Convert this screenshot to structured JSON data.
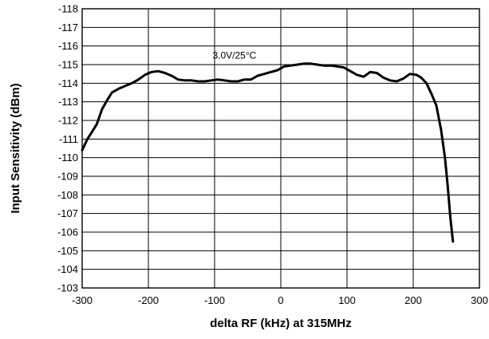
{
  "chart_data": {
    "type": "line",
    "title": "",
    "xlabel": "delta RF (kHz) at 315MHz",
    "ylabel": "Input Sensitivity (dBm)",
    "xlim": [
      -300,
      300
    ],
    "ylim": [
      -103,
      -118
    ],
    "y_axis_inverted": true,
    "xticks": [
      "-300",
      "-200",
      "-100",
      "0",
      "100",
      "200",
      "300"
    ],
    "yticks": [
      "-118",
      "-117",
      "-116",
      "-115",
      "-114",
      "-113",
      "-112",
      "-111",
      "-110",
      "-109",
      "-108",
      "-107",
      "-106",
      "-105",
      "-104",
      "-103"
    ],
    "grid": true,
    "annotations": [
      {
        "text": "3.0V/25°C",
        "x": -70,
        "y": -115.5
      }
    ],
    "series": [
      {
        "x": [
          -300,
          -292,
          -285,
          -278,
          -270,
          -262,
          -255,
          -245,
          -235,
          -225,
          -215,
          -205,
          -195,
          -185,
          -175,
          -165,
          -155,
          -145,
          -135,
          -125,
          -115,
          -105,
          -95,
          -85,
          -75,
          -65,
          -55,
          -45,
          -35,
          -25,
          -15,
          -5,
          5,
          15,
          25,
          35,
          45,
          55,
          65,
          75,
          85,
          95,
          105,
          115,
          125,
          135,
          145,
          155,
          165,
          175,
          185,
          195,
          205,
          212,
          220,
          228,
          235,
          242,
          248,
          252,
          256,
          260
        ],
        "values": [
          -110.4,
          -111.0,
          -111.4,
          -111.8,
          -112.6,
          -113.1,
          -113.5,
          -113.7,
          -113.85,
          -114.0,
          -114.2,
          -114.45,
          -114.6,
          -114.65,
          -114.55,
          -114.4,
          -114.2,
          -114.15,
          -114.15,
          -114.1,
          -114.1,
          -114.15,
          -114.2,
          -114.15,
          -114.1,
          -114.1,
          -114.2,
          -114.2,
          -114.4,
          -114.5,
          -114.6,
          -114.7,
          -114.9,
          -114.95,
          -115.0,
          -115.05,
          -115.05,
          -115.0,
          -114.95,
          -114.95,
          -114.9,
          -114.85,
          -114.65,
          -114.45,
          -114.35,
          -114.6,
          -114.55,
          -114.3,
          -114.15,
          -114.1,
          -114.25,
          -114.5,
          -114.45,
          -114.3,
          -114.0,
          -113.4,
          -112.8,
          -111.5,
          -110.0,
          -108.5,
          -106.8,
          -105.5
        ]
      }
    ]
  }
}
